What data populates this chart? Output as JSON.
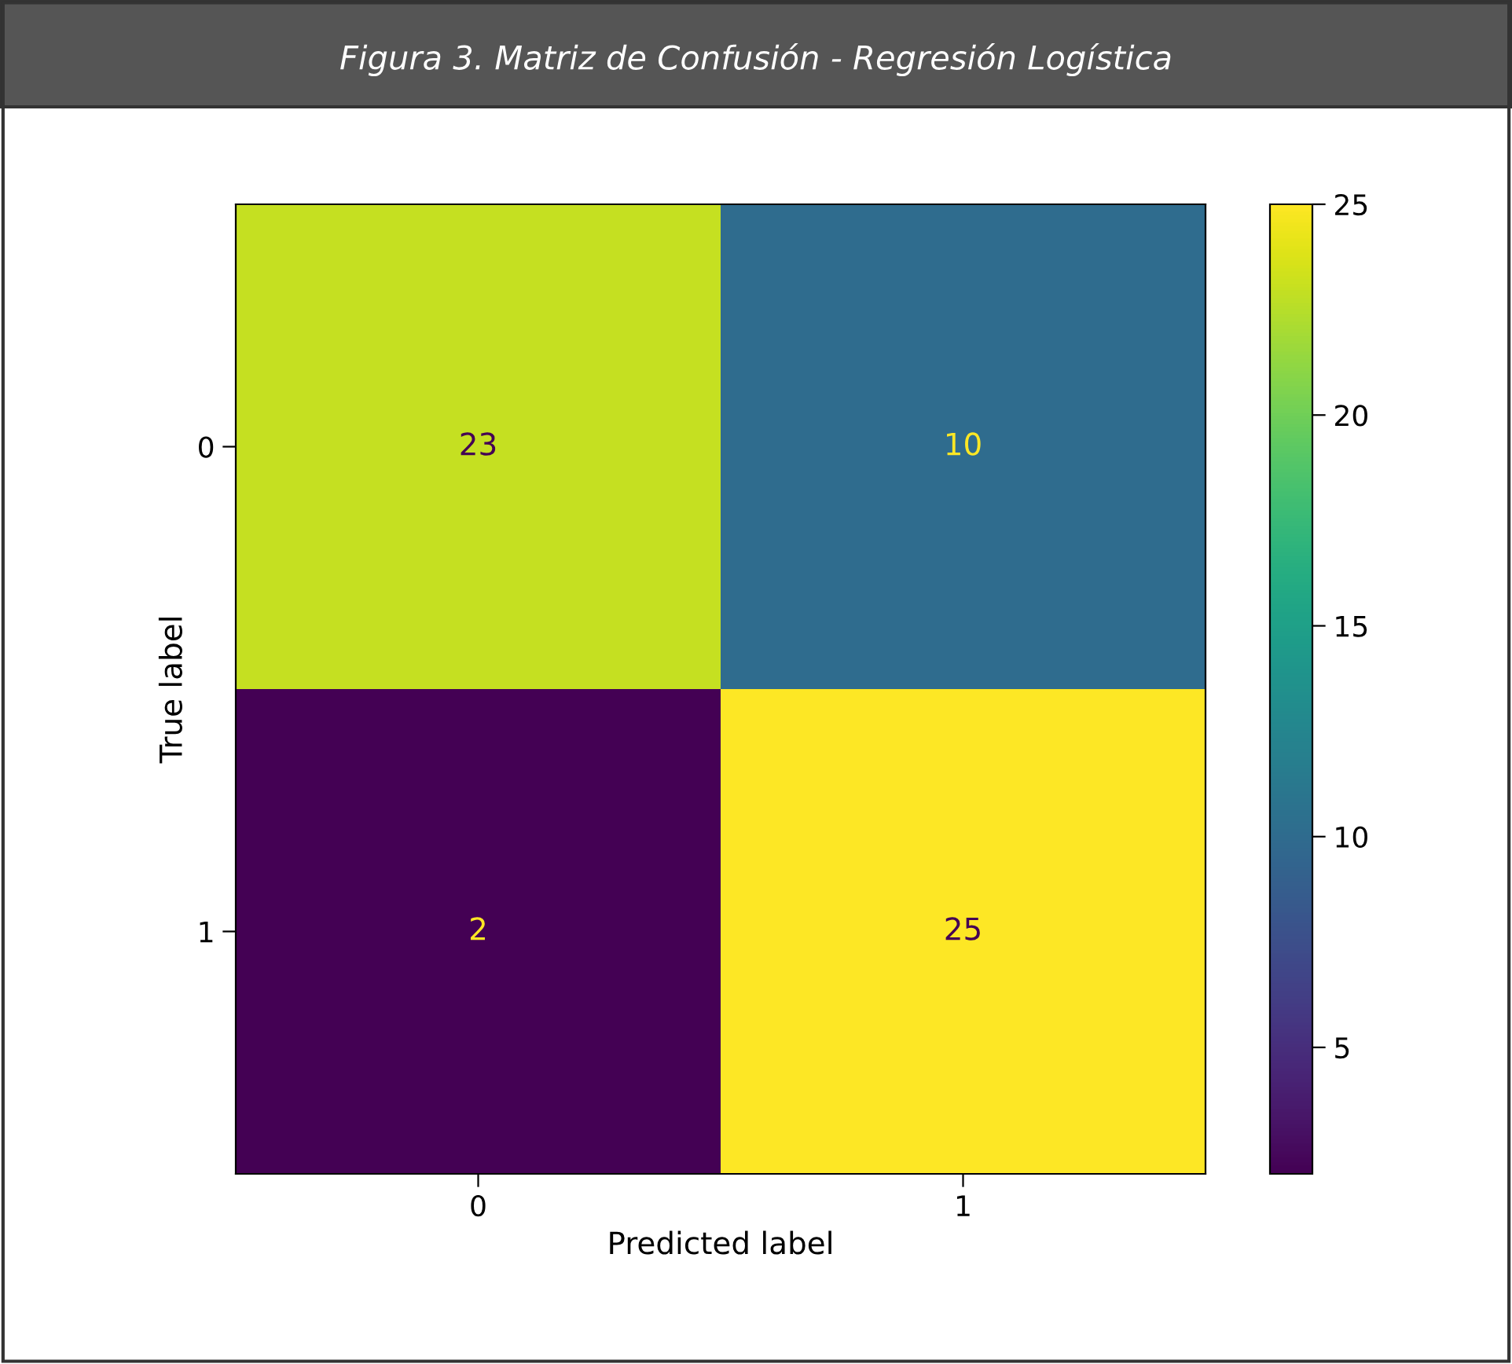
{
  "chart_data": {
    "type": "heatmap",
    "title": "Figura 3. Matriz de Confusión - Regresión Logística",
    "xlabel": "Predicted label",
    "ylabel": "True label",
    "categories": [
      "0",
      "1"
    ],
    "y_categories": [
      "0",
      "1"
    ],
    "cells": [
      [
        23,
        10
      ],
      [
        2,
        25
      ]
    ],
    "clim": [
      2,
      25
    ],
    "cticks": [
      5,
      10,
      15,
      20,
      25
    ],
    "data_labels": true,
    "grid": false
  }
}
